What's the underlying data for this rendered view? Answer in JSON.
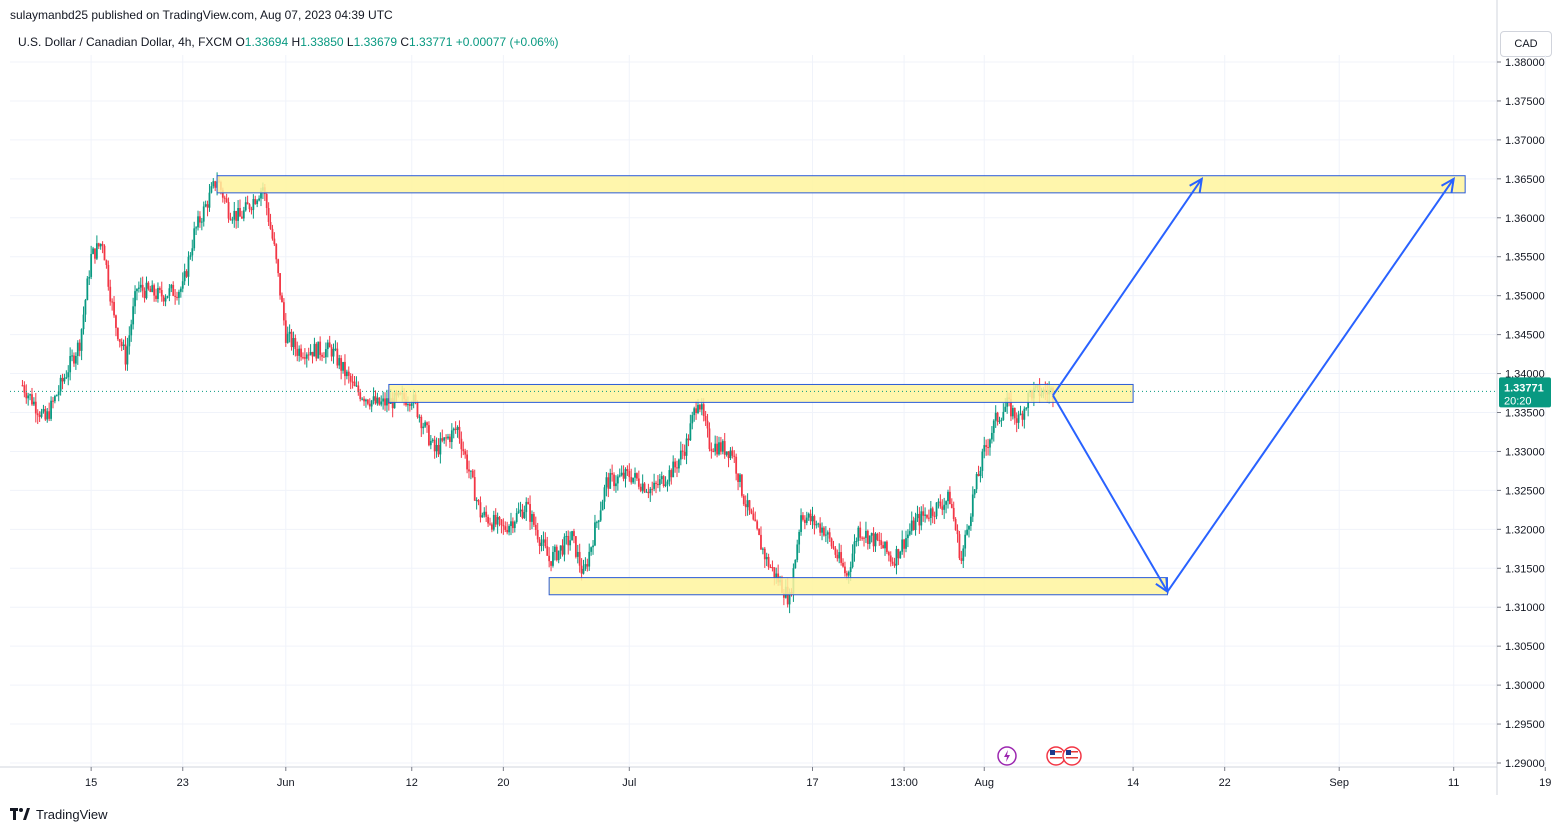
{
  "header": {
    "published_line": "sulaymanbd25 published on TradingView.com, Aug 07, 2023 04:39 UTC"
  },
  "legend": {
    "symbol": "U.S. Dollar / Canadian Dollar, 4h, FXCM",
    "o_label": "O",
    "o_value": "1.33694",
    "h_label": "H",
    "h_value": "1.33850",
    "l_label": "L",
    "l_value": "1.33679",
    "c_label": "C",
    "c_value": "1.33771",
    "change": "+0.00077 (+0.06%)"
  },
  "currency_badge": "CAD",
  "footer": {
    "brand": "TradingView"
  },
  "colors": {
    "up": "#089981",
    "down": "#f23645",
    "zone_fill": "#fff59d",
    "zone_border": "#2a5bd7",
    "arrow": "#2962ff",
    "grid": "#f0f3fa",
    "price_badge": "#089981"
  },
  "chart_data": {
    "type": "candlestick",
    "symbol": "USDCAD",
    "timeframe": "4h",
    "y_ticks": [
      "1.38000",
      "1.37500",
      "1.37000",
      "1.36500",
      "1.36000",
      "1.35500",
      "1.35000",
      "1.34500",
      "1.34000",
      "1.33500",
      "1.33000",
      "1.32500",
      "1.32000",
      "1.31500",
      "1.31000",
      "1.30500",
      "1.30000",
      "1.29500",
      "1.29000"
    ],
    "ylim": [
      1.29,
      1.38
    ],
    "x_ticks": [
      "15",
      "23",
      "Jun",
      "12",
      "20",
      "Jul",
      "17",
      "13:00",
      "Aug",
      "14",
      "22",
      "Sep",
      "11",
      "19"
    ],
    "last_price": "1.33771",
    "countdown": "20:20",
    "price_anchors": [
      {
        "date": "May 09",
        "price": 1.3385
      },
      {
        "date": "May 11",
        "price": 1.334
      },
      {
        "date": "May 14",
        "price": 1.344
      },
      {
        "date": "May 15",
        "price": 1.355
      },
      {
        "date": "May 16",
        "price": 1.357
      },
      {
        "date": "May 17",
        "price": 1.347
      },
      {
        "date": "May 18",
        "price": 1.342
      },
      {
        "date": "May 19",
        "price": 1.351
      },
      {
        "date": "May 21",
        "price": 1.35
      },
      {
        "date": "May 23",
        "price": 1.351
      },
      {
        "date": "May 24",
        "price": 1.358
      },
      {
        "date": "May 26",
        "price": 1.365
      },
      {
        "date": "May 27",
        "price": 1.361
      },
      {
        "date": "May 28",
        "price": 1.36
      },
      {
        "date": "May 30",
        "price": 1.364
      },
      {
        "date": "May 31",
        "price": 1.356
      },
      {
        "date": "Jun 01",
        "price": 1.345
      },
      {
        "date": "Jun 02",
        "price": 1.343
      },
      {
        "date": "Jun 04",
        "price": 1.343
      },
      {
        "date": "Jun 05",
        "price": 1.343
      },
      {
        "date": "Jun 07",
        "price": 1.338
      },
      {
        "date": "Jun 09",
        "price": 1.336
      },
      {
        "date": "Jun 12",
        "price": 1.337
      },
      {
        "date": "Jun 14",
        "price": 1.33
      },
      {
        "date": "Jun 16",
        "price": 1.333
      },
      {
        "date": "Jun 18",
        "price": 1.322
      },
      {
        "date": "Jun 20",
        "price": 1.32
      },
      {
        "date": "Jun 22",
        "price": 1.323
      },
      {
        "date": "Jun 24",
        "price": 1.316
      },
      {
        "date": "Jun 26",
        "price": 1.319
      },
      {
        "date": "Jun 27",
        "price": 1.314
      },
      {
        "date": "Jun 29",
        "price": 1.326
      },
      {
        "date": "Jul 01",
        "price": 1.327
      },
      {
        "date": "Jul 03",
        "price": 1.325
      },
      {
        "date": "Jul 05",
        "price": 1.328
      },
      {
        "date": "Jul 06",
        "price": 1.331
      },
      {
        "date": "Jul 07",
        "price": 1.337
      },
      {
        "date": "Jul 08",
        "price": 1.331
      },
      {
        "date": "Jul 10",
        "price": 1.33
      },
      {
        "date": "Jul 11",
        "price": 1.324
      },
      {
        "date": "Jul 13",
        "price": 1.316
      },
      {
        "date": "Jul 15",
        "price": 1.311
      },
      {
        "date": "Jul 16",
        "price": 1.322
      },
      {
        "date": "Jul 18",
        "price": 1.32
      },
      {
        "date": "Jul 19",
        "price": 1.317
      },
      {
        "date": "Jul 20",
        "price": 1.314
      },
      {
        "date": "Jul 21",
        "price": 1.32
      },
      {
        "date": "Jul 23",
        "price": 1.318
      },
      {
        "date": "Jul 24",
        "price": 1.316
      },
      {
        "date": "Jul 26",
        "price": 1.321
      },
      {
        "date": "Jul 27",
        "price": 1.322
      },
      {
        "date": "Jul 29",
        "price": 1.324
      },
      {
        "date": "Jul 30",
        "price": 1.316
      },
      {
        "date": "Jul 31",
        "price": 1.324
      },
      {
        "date": "Aug 01",
        "price": 1.33
      },
      {
        "date": "Aug 02",
        "price": 1.334
      },
      {
        "date": "Aug 03",
        "price": 1.336
      },
      {
        "date": "Aug 04",
        "price": 1.334
      },
      {
        "date": "Aug 05",
        "price": 1.3375
      },
      {
        "date": "Aug 07",
        "price": 1.3377
      }
    ],
    "zones": [
      {
        "start": "May 26",
        "end": "Sep 12",
        "top": 1.3654,
        "bottom": 1.3632
      },
      {
        "start": "Jun 10",
        "end": "Aug 14",
        "top": 1.3386,
        "bottom": 1.3363
      },
      {
        "start": "Jun 24",
        "end": "Aug 17",
        "top": 1.3138,
        "bottom": 1.3116
      }
    ],
    "arrows": [
      {
        "from": {
          "date": "Aug 07",
          "price": 1.3372
        },
        "to": {
          "date": "Aug 20",
          "price": 1.365
        }
      },
      {
        "from": {
          "date": "Aug 07",
          "price": 1.3372
        },
        "to": {
          "date": "Aug 17",
          "price": 1.312
        }
      },
      {
        "from": {
          "date": "Aug 17",
          "price": 1.312
        },
        "to": {
          "date": "Sep 11",
          "price": 1.365
        }
      }
    ],
    "events": [
      "lightning-icon",
      "us-flag-icon",
      "us-flag-icon"
    ]
  }
}
